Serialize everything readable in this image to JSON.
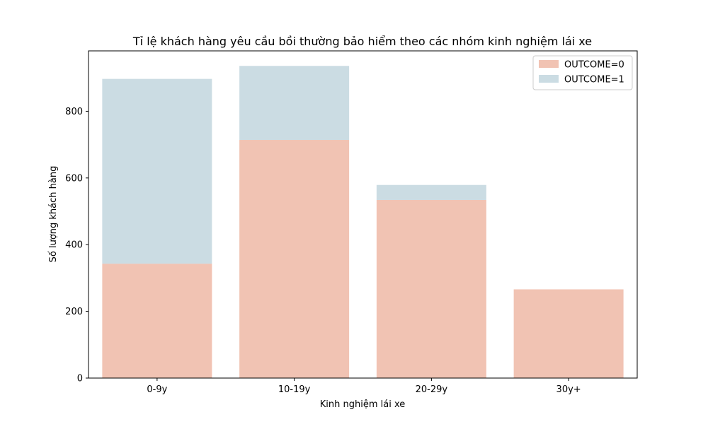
{
  "chart_data": {
    "type": "bar",
    "title": "Tỉ lệ khách hàng yêu cầu bồi thường bảo hiểm theo các nhóm kinh nghiệm lái xe",
    "xlabel": "Kinh nghiệm lái xe",
    "ylabel": "Số lượng khách hàng",
    "categories": [
      "0-9y",
      "10-19y",
      "20-29y",
      "30y+"
    ],
    "stacked": true,
    "series": [
      {
        "name": "OUTCOME=0",
        "color": "#f1c3b3",
        "values": [
          343,
          714,
          534,
          266
        ]
      },
      {
        "name": "OUTCOME=1",
        "color": "#cbdce3",
        "values": [
          554,
          222,
          45,
          0
        ]
      }
    ],
    "ylim": [
      0,
      981
    ],
    "yticks": [
      0,
      200,
      400,
      600,
      800
    ],
    "grid": false,
    "legend_position": "top-right"
  }
}
